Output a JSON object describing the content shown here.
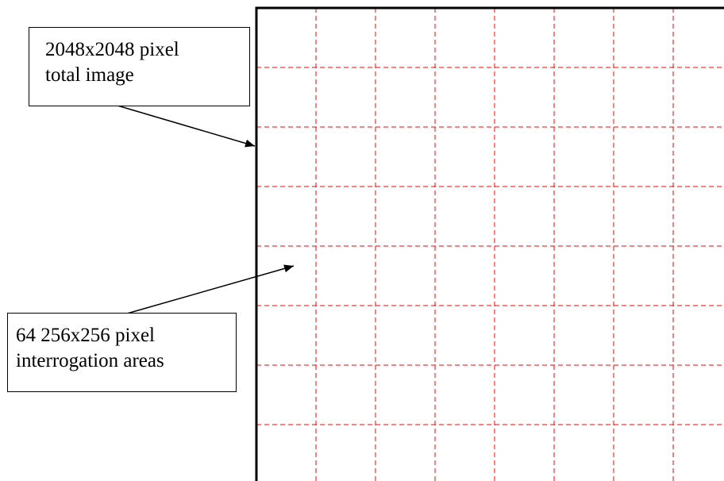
{
  "diagram": {
    "grid": {
      "rows": 8,
      "columns": 8,
      "line_color": "#ff0000",
      "border_color": "#000000",
      "line_style": "dashed"
    },
    "callouts": [
      {
        "id": "total-image",
        "lines": [
          "2048x2048 pixel",
          "total image"
        ],
        "points_to": "image-boundary"
      },
      {
        "id": "interrogation-areas",
        "lines": [
          "64 256x256 pixel",
          "interrogation areas"
        ],
        "points_to": "grid-cell"
      }
    ]
  }
}
